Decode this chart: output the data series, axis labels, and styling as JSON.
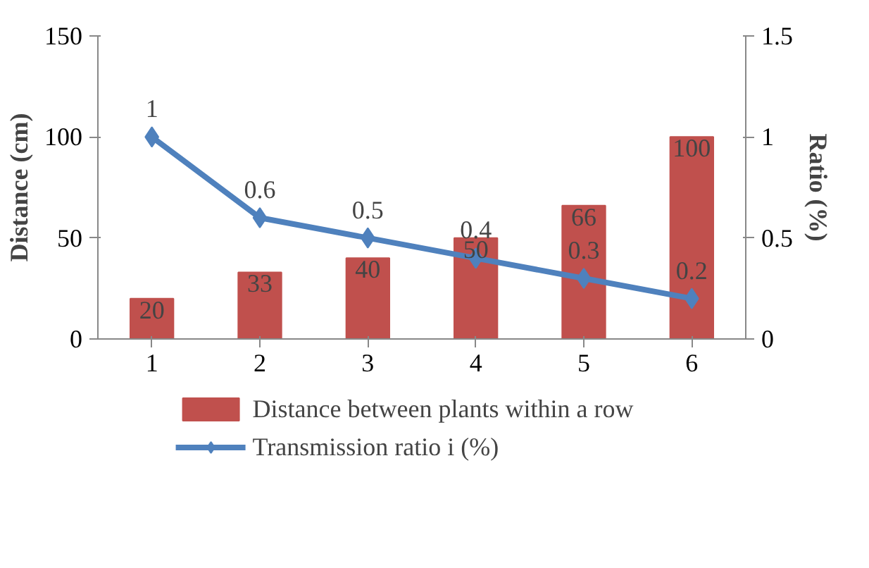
{
  "chart_data": {
    "type": "bar",
    "categories": [
      "1",
      "2",
      "3",
      "4",
      "5",
      "6"
    ],
    "ylabel": "Distance (cm)",
    "y2label": "Ratio (%)",
    "ylim": [
      0,
      150
    ],
    "yticks": [
      0,
      50,
      100,
      150
    ],
    "y2lim": [
      0,
      1.5
    ],
    "y2ticks": [
      0,
      0.5,
      1,
      1.5
    ],
    "grid": false,
    "legend": "bottom",
    "data_labels": true,
    "series": [
      {
        "name": "Distance between plants within a row",
        "color": "#c0504d",
        "values": [
          20,
          33,
          40,
          50,
          66,
          100
        ]
      },
      {
        "name": "Transmission ratio i (%)",
        "color": "#4f81bd",
        "type": "line",
        "axis": "y2",
        "marker": "diamond",
        "values": [
          1,
          0.6,
          0.5,
          0.4,
          0.3,
          0.2
        ]
      }
    ]
  }
}
